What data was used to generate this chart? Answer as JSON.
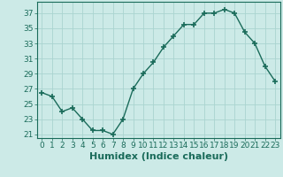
{
  "x": [
    0,
    1,
    2,
    3,
    4,
    5,
    6,
    7,
    8,
    9,
    10,
    11,
    12,
    13,
    14,
    15,
    16,
    17,
    18,
    19,
    20,
    21,
    22,
    23
  ],
  "y": [
    26.5,
    26.0,
    24.0,
    24.5,
    23.0,
    21.5,
    21.5,
    21.0,
    23.0,
    27.0,
    29.0,
    30.5,
    32.5,
    34.0,
    35.5,
    35.5,
    37.0,
    37.0,
    37.5,
    37.0,
    34.5,
    33.0,
    30.0,
    28.0
  ],
  "xlabel": "Humidex (Indice chaleur)",
  "ylim": [
    20.5,
    38.5
  ],
  "xlim": [
    -0.5,
    23.5
  ],
  "yticks": [
    21,
    23,
    25,
    27,
    29,
    31,
    33,
    35,
    37
  ],
  "xtick_labels": [
    "0",
    "1",
    "2",
    "3",
    "4",
    "5",
    "6",
    "7",
    "8",
    "9",
    "10",
    "11",
    "12",
    "13",
    "14",
    "15",
    "16",
    "17",
    "18",
    "19",
    "20",
    "21",
    "22",
    "23"
  ],
  "line_color": "#1a6b5a",
  "marker": "+",
  "bg_color": "#cceae7",
  "grid_color": "#aad4d0",
  "tick_label_fontsize": 6.5,
  "xlabel_fontsize": 8.0
}
